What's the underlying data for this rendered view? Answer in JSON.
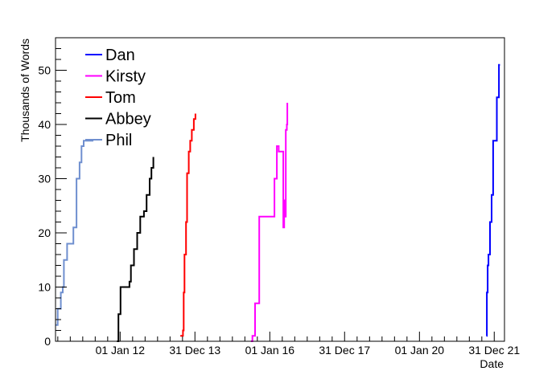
{
  "chart_data": {
    "type": "line",
    "title": "",
    "xlabel": "Date",
    "ylabel": "Thousands of Words",
    "xlim": [
      "2010-04-10",
      "2022-04-10"
    ],
    "ylim": [
      0,
      56
    ],
    "grid": false,
    "legend_position": "top-left",
    "x_ticks": [
      {
        "date": "2012-01-01",
        "label": "01 Jan 12"
      },
      {
        "date": "2013-12-31",
        "label": "31 Dec 13"
      },
      {
        "date": "2016-01-01",
        "label": "01 Jan 16"
      },
      {
        "date": "2017-12-31",
        "label": "31 Dec 17"
      },
      {
        "date": "2020-01-01",
        "label": "01 Jan 20"
      },
      {
        "date": "2021-12-31",
        "label": "31 Dec 21"
      }
    ],
    "y_ticks": [
      0,
      10,
      20,
      30,
      40,
      50
    ],
    "series": [
      {
        "name": "Dan",
        "color": "#0000ff",
        "points": [
          [
            "2021-10-15",
            1
          ],
          [
            "2021-10-20",
            9
          ],
          [
            "2021-10-28",
            14
          ],
          [
            "2021-11-05",
            16
          ],
          [
            "2021-11-20",
            22
          ],
          [
            "2021-12-05",
            27
          ],
          [
            "2021-12-20",
            37
          ],
          [
            "2022-01-05",
            37
          ],
          [
            "2022-01-10",
            37
          ],
          [
            "2022-01-25",
            45
          ],
          [
            "2022-02-15",
            51
          ],
          [
            "2022-02-25",
            51
          ]
        ]
      },
      {
        "name": "Kirsty",
        "color": "#ff00ff",
        "points": [
          [
            "2015-07-01",
            0
          ],
          [
            "2015-07-15",
            1
          ],
          [
            "2015-08-01",
            1
          ],
          [
            "2015-08-10",
            7
          ],
          [
            "2015-09-10",
            7
          ],
          [
            "2015-09-20",
            23
          ],
          [
            "2016-02-10",
            23
          ],
          [
            "2016-02-15",
            30
          ],
          [
            "2016-03-05",
            30
          ],
          [
            "2016-03-10",
            36
          ],
          [
            "2016-03-25",
            36
          ],
          [
            "2016-03-28",
            35
          ],
          [
            "2016-05-10",
            35
          ],
          [
            "2016-05-12",
            21
          ],
          [
            "2016-05-20",
            26
          ],
          [
            "2016-06-01",
            23
          ],
          [
            "2016-06-05",
            39
          ],
          [
            "2016-06-15",
            40
          ],
          [
            "2016-06-20",
            44
          ]
        ]
      },
      {
        "name": "Tom",
        "color": "#ff0000",
        "points": [
          [
            "2013-08-10",
            1
          ],
          [
            "2013-08-25",
            1
          ],
          [
            "2013-09-05",
            2
          ],
          [
            "2013-09-12",
            9
          ],
          [
            "2013-09-20",
            16
          ],
          [
            "2013-10-05",
            22
          ],
          [
            "2013-10-15",
            31
          ],
          [
            "2013-11-01",
            35
          ],
          [
            "2013-11-15",
            37
          ],
          [
            "2013-12-01",
            39
          ],
          [
            "2013-12-20",
            41
          ],
          [
            "2014-01-05",
            42
          ]
        ]
      },
      {
        "name": "Abbey",
        "color": "#000000",
        "points": [
          [
            "2011-12-01",
            0
          ],
          [
            "2011-12-15",
            5
          ],
          [
            "2012-01-05",
            10
          ],
          [
            "2012-03-20",
            10
          ],
          [
            "2012-04-01",
            11
          ],
          [
            "2012-04-15",
            14
          ],
          [
            "2012-05-15",
            17
          ],
          [
            "2012-06-15",
            20
          ],
          [
            "2012-07-15",
            23
          ],
          [
            "2012-08-20",
            24
          ],
          [
            "2012-09-15",
            27
          ],
          [
            "2012-10-15",
            30
          ],
          [
            "2012-11-01",
            32
          ],
          [
            "2012-11-20",
            34
          ]
        ]
      },
      {
        "name": "Phil",
        "color": "#6f8fcf",
        "points": [
          [
            "2010-04-10",
            3
          ],
          [
            "2010-05-01",
            6
          ],
          [
            "2010-06-01",
            9
          ],
          [
            "2010-06-20",
            10
          ],
          [
            "2010-07-01",
            15
          ],
          [
            "2010-08-01",
            18
          ],
          [
            "2010-09-15",
            18
          ],
          [
            "2010-10-01",
            21
          ],
          [
            "2010-11-01",
            30
          ],
          [
            "2010-12-01",
            33
          ],
          [
            "2010-12-20",
            36
          ],
          [
            "2011-01-10",
            37
          ],
          [
            "2011-04-01",
            37
          ],
          [
            "2011-04-15",
            37
          ]
        ]
      }
    ]
  }
}
